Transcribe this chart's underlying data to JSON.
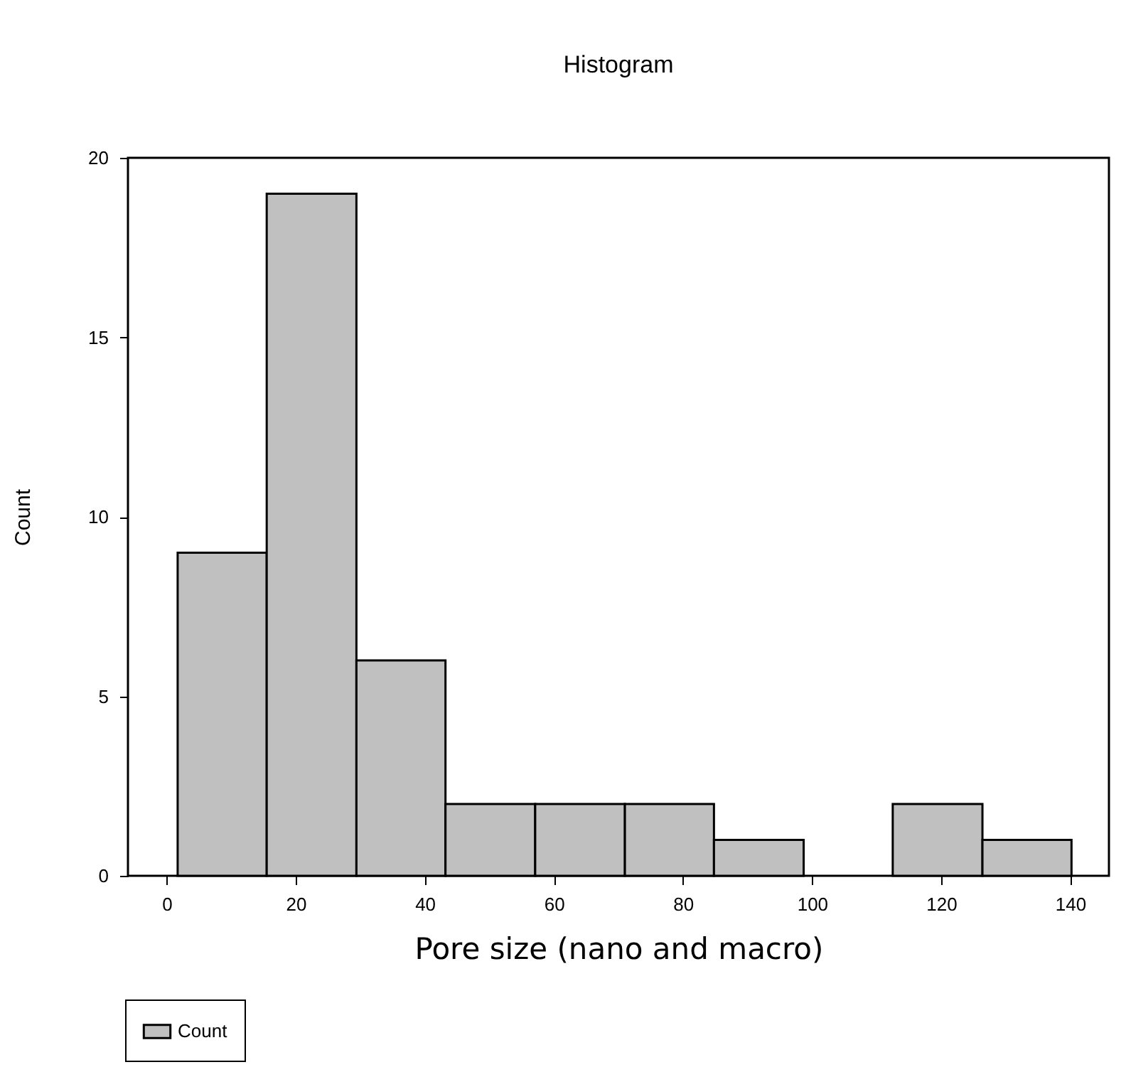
{
  "chart_data": {
    "type": "histogram",
    "title": "Histogram",
    "xlabel": "Pore size (nano and macro)",
    "ylabel": "Count",
    "bins": [
      1.7,
      15.5,
      29.4,
      43.2,
      57.1,
      71.0,
      84.8,
      98.7,
      112.5,
      126.4,
      140.2
    ],
    "series": [
      {
        "name": "Count",
        "color": "#c0c0c0",
        "values": [
          9,
          19,
          6,
          2,
          2,
          2,
          1,
          0,
          2,
          1
        ]
      }
    ],
    "xlim": [
      -6,
      146
    ],
    "xticks": [
      0,
      20,
      40,
      60,
      80,
      100,
      120,
      140
    ],
    "ylim": [
      0,
      20
    ],
    "yticks": [
      0,
      5,
      10,
      15,
      20
    ],
    "grid": false,
    "legend": "bottom left"
  }
}
